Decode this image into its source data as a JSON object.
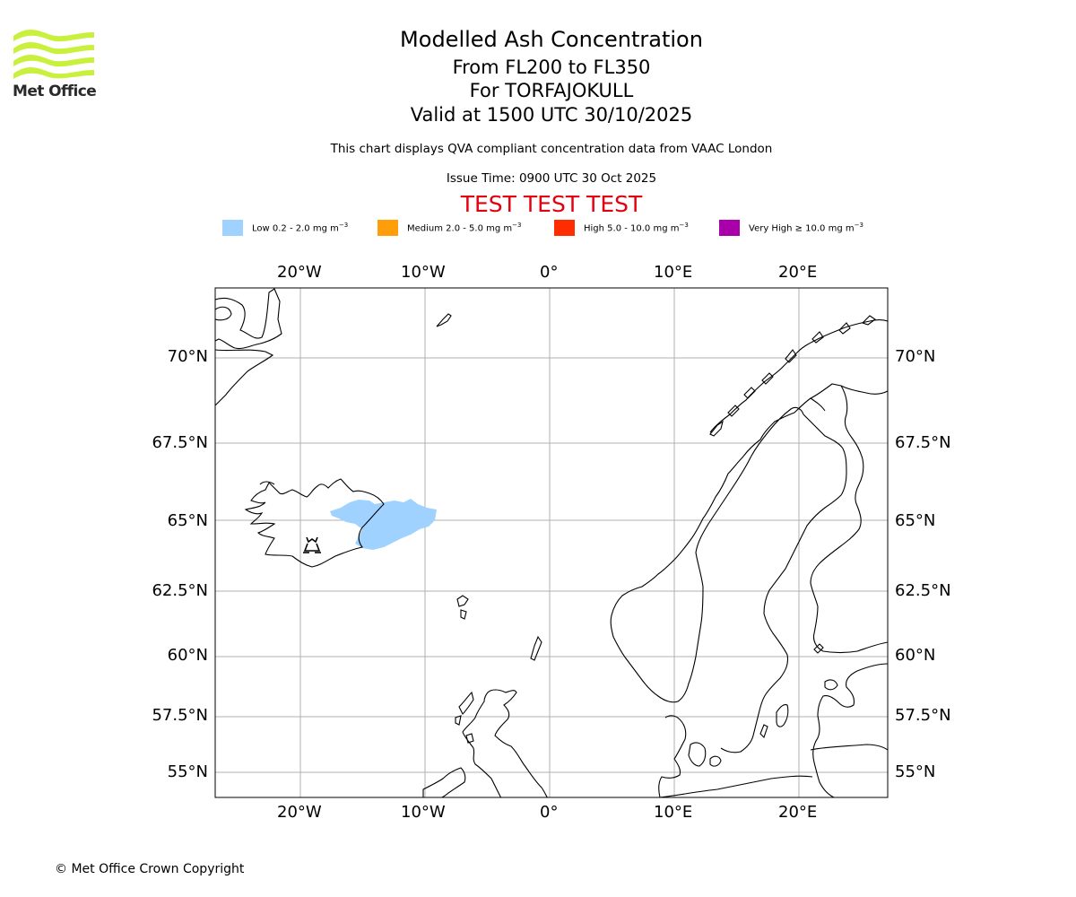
{
  "header": {
    "title": "Modelled Ash Concentration",
    "level": "From FL200 to FL350",
    "volcano": "For TORFAJOKULL",
    "valid": "Valid at 1500 UTC 30/10/2025",
    "subtitle": "This chart displays QVA compliant concentration data from VAAC London",
    "issue_time": "Issue Time: 0900 UTC 30 Oct 2025",
    "test_banner": "TEST TEST TEST"
  },
  "logo": {
    "text": "Met Office",
    "icon": "met-office-wave-logo-icon"
  },
  "legend": [
    {
      "label": "Low 0.2 - 2.0 mg m",
      "unit_exp": "−3",
      "color": "#a0d2ff"
    },
    {
      "label": "Medium 2.0 - 5.0 mg m",
      "unit_exp": "−3",
      "color": "#ff9d0a"
    },
    {
      "label": "High 5.0 - 10.0 mg m",
      "unit_exp": "−3",
      "color": "#ff2d00"
    },
    {
      "label": "Very High  ≥  10.0 mg m",
      "unit_exp": "−3",
      "color": "#aa00aa"
    }
  ],
  "map": {
    "lon_labels": [
      "20°W",
      "10°W",
      "0°",
      "10°E",
      "20°E"
    ],
    "lat_labels": [
      "70°N",
      "67.5°N",
      "65°N",
      "62.5°N",
      "60°N",
      "57.5°N",
      "55°N"
    ],
    "volcano_icon": "volcano-icon",
    "ash_level": "Low"
  },
  "footer": {
    "copyright": "© Met Office Crown Copyright"
  }
}
